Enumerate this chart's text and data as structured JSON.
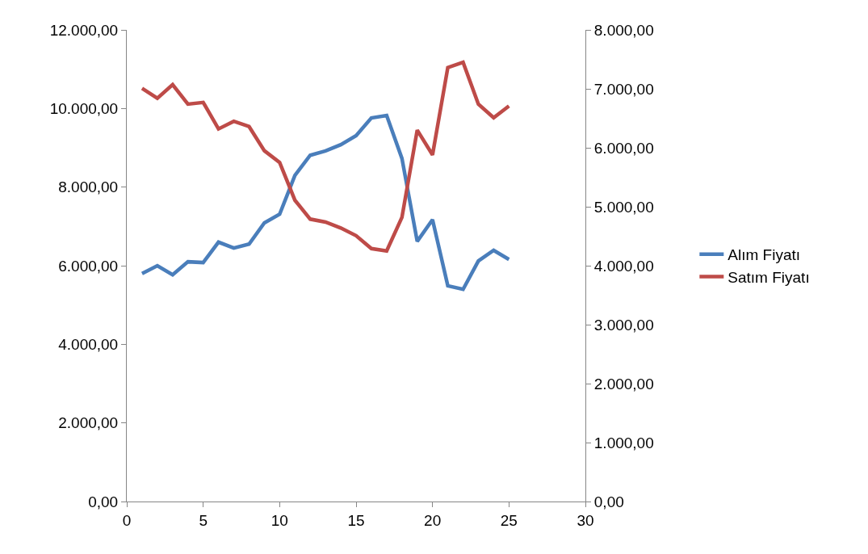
{
  "chart_data": {
    "type": "line",
    "x": [
      1,
      2,
      3,
      4,
      5,
      6,
      7,
      8,
      9,
      10,
      11,
      12,
      13,
      14,
      15,
      16,
      17,
      18,
      19,
      20,
      21,
      22,
      23,
      24,
      25
    ],
    "series": [
      {
        "name": "Alım Fiyatı",
        "color": "#4a7ebb",
        "values": [
          5800,
          6000,
          5770,
          6100,
          6080,
          6600,
          6450,
          6550,
          7090,
          7310,
          8300,
          8810,
          8920,
          9080,
          9310,
          9760,
          9820,
          8730,
          6620,
          7170,
          5490,
          5400,
          6120,
          6390,
          6160
        ]
      },
      {
        "name": "Satım Fiyatı",
        "color": "#be4b48",
        "axis": "y2",
        "values": [
          7010,
          6840,
          7070,
          6740,
          6770,
          6320,
          6450,
          6360,
          5950,
          5750,
          5110,
          4790,
          4740,
          4640,
          4510,
          4290,
          4250,
          4820,
          6300,
          5880,
          7360,
          7450,
          6740,
          6510,
          6710
        ]
      }
    ],
    "xlim": [
      0,
      30
    ],
    "xticks": [
      0,
      5,
      10,
      15,
      20,
      25,
      30
    ],
    "ylim": [
      0,
      12000
    ],
    "yticks": [
      {
        "value": 0,
        "label": "0,00"
      },
      {
        "value": 2000,
        "label": "2.000,00"
      },
      {
        "value": 4000,
        "label": "4.000,00"
      },
      {
        "value": 6000,
        "label": "6.000,00"
      },
      {
        "value": 8000,
        "label": "8.000,00"
      },
      {
        "value": 10000,
        "label": "10.000,00"
      },
      {
        "value": 12000,
        "label": "12.000,00"
      }
    ],
    "y2lim": [
      0,
      8000
    ],
    "y2ticks": [
      {
        "value": 0,
        "label": "0,00"
      },
      {
        "value": 1000,
        "label": "1.000,00"
      },
      {
        "value": 2000,
        "label": "2.000,00"
      },
      {
        "value": 3000,
        "label": "3.000,00"
      },
      {
        "value": 4000,
        "label": "4.000,00"
      },
      {
        "value": 5000,
        "label": "5.000,00"
      },
      {
        "value": 6000,
        "label": "6.000,00"
      },
      {
        "value": 7000,
        "label": "7.000,00"
      },
      {
        "value": 8000,
        "label": "8.000,00"
      }
    ],
    "grid": false,
    "legend": "right",
    "marker": "none",
    "line_style": "solid"
  }
}
